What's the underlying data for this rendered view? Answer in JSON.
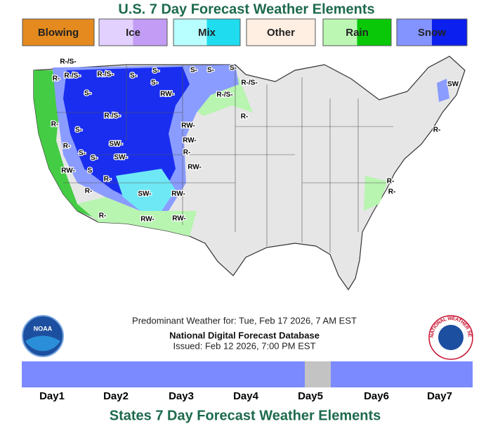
{
  "header": {
    "title": "U.S. 7 Day Forecast Weather Elements"
  },
  "legend": [
    {
      "label": "Blowing"
    },
    {
      "label": "Ice"
    },
    {
      "label": "Mix"
    },
    {
      "label": "Other"
    },
    {
      "label": "Rain"
    },
    {
      "label": "Snow"
    }
  ],
  "map": {
    "labels": [
      "R-/S-",
      "R-/S-",
      "R-",
      "R-/S-",
      "S-",
      "S-",
      "S-",
      "S-",
      "S-",
      "S-",
      "R-/S-",
      "SW",
      "S-",
      "RW-",
      "R-/S-",
      "R-/S-",
      "R-",
      "RW-",
      "R-",
      "S-",
      "R-",
      "SW-",
      "RW-",
      "R-",
      "S-",
      "R-",
      "SW-",
      "S-",
      "RW-",
      "RW-",
      "S",
      "R-",
      "R-",
      "SW-",
      "RW-",
      "R-",
      "R-",
      "R-",
      "RW-",
      "RW-"
    ]
  },
  "info": {
    "line1": "Predominant Weather for: Tue, Feb 17 2026, 7 AM EST",
    "line2": "National Digital Forecast Database",
    "line3": "Issued: Feb 12 2026, 7:00 PM EST"
  },
  "logos": {
    "noaa": "NOAA",
    "nws": "NATIONAL WEATHER SERVICE"
  },
  "timeline": {
    "days": [
      "Day1",
      "Day2",
      "Day3",
      "Day4",
      "Day5",
      "Day6",
      "Day7"
    ]
  },
  "footer": {
    "title": "States 7 Day Forecast Weather Elements"
  }
}
